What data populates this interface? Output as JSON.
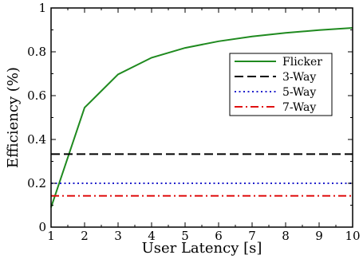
{
  "chart_data": {
    "type": "line",
    "title": "",
    "xlabel": "User Latency [s]",
    "ylabel": "Efficiency (%)",
    "xlim": [
      1,
      10
    ],
    "ylim": [
      0,
      1
    ],
    "xticks": [
      1,
      2,
      3,
      4,
      5,
      6,
      7,
      8,
      9,
      10
    ],
    "yticks": [
      0,
      0.2,
      0.4,
      0.6,
      0.8,
      1
    ],
    "ytick_labels": [
      "0",
      "0.2",
      "0.4",
      "0.6",
      "0.8",
      "1"
    ],
    "grid": false,
    "legend_position": "top-right",
    "series": [
      {
        "name": "Flicker",
        "color": "#1f8a1f",
        "dash": "solid",
        "x": [
          1,
          2,
          3,
          4,
          5,
          6,
          7,
          8,
          9,
          10
        ],
        "y": [
          0.09,
          0.545,
          0.697,
          0.773,
          0.818,
          0.848,
          0.87,
          0.886,
          0.899,
          0.909
        ]
      },
      {
        "name": "3-Way",
        "color": "#000000",
        "dash": "dashed",
        "x": [
          1,
          10
        ],
        "y": [
          0.333,
          0.333
        ]
      },
      {
        "name": "5-Way",
        "color": "#2020cc",
        "dash": "dotted",
        "x": [
          1,
          10
        ],
        "y": [
          0.2,
          0.2
        ]
      },
      {
        "name": "7-Way",
        "color": "#e01010",
        "dash": "dashdot",
        "x": [
          1,
          10
        ],
        "y": [
          0.143,
          0.143
        ]
      }
    ]
  }
}
